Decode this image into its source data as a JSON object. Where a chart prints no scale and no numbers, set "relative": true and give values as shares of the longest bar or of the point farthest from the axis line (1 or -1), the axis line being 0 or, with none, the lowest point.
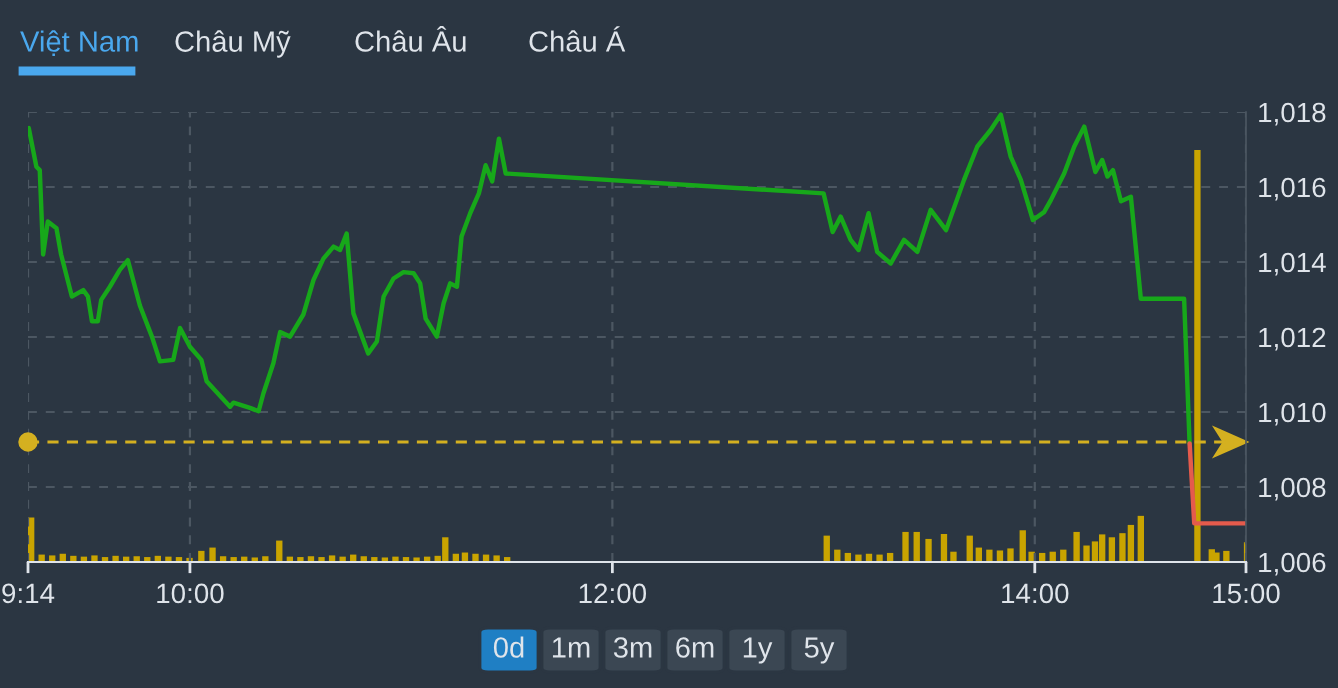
{
  "chart_data": [
    {
      "type": "line",
      "x": [
        9.237,
        9.273,
        9.289,
        9.305,
        9.327,
        9.368,
        9.39,
        9.441,
        9.495,
        9.517,
        9.536,
        9.564,
        9.58,
        9.621,
        9.668,
        9.706,
        9.763,
        9.82,
        9.858,
        9.921,
        9.953,
        10.0,
        10.054,
        10.079,
        10.19,
        10.206,
        10.284,
        10.325,
        10.348,
        10.395,
        10.427,
        10.474,
        10.537,
        10.585,
        10.632,
        10.68,
        10.711,
        10.742,
        10.774,
        10.844,
        10.885,
        10.917,
        10.964,
        11.011,
        11.059,
        11.09,
        11.116,
        11.169,
        11.201,
        11.232,
        11.264,
        11.286,
        11.327,
        11.368,
        11.4,
        11.431,
        11.463,
        11.495,
        13.0,
        13.043,
        13.081,
        13.128,
        13.166,
        13.213,
        13.254,
        13.318,
        13.381,
        13.444,
        13.507,
        13.58,
        13.665,
        13.728,
        13.791,
        13.839,
        13.886,
        13.934,
        13.991,
        14.044,
        14.076,
        14.139,
        14.187,
        14.234,
        14.287,
        14.319,
        14.344,
        14.37,
        14.408,
        14.455,
        14.502,
        14.707,
        14.733
      ],
      "series": [
        {
          "color": "#17a81a",
          "values": [
            1017.57,
            1016.54,
            1016.45,
            1014.2,
            1015.08,
            1014.9,
            1014.2,
            1013.08,
            1013.25,
            1013.08,
            1012.42,
            1012.42,
            1012.99,
            1013.34,
            1013.79,
            1014.05,
            1012.84,
            1012.01,
            1011.35,
            1011.39,
            1012.24,
            1011.74,
            1011.39,
            1010.82,
            1010.14,
            1010.25,
            1010.11,
            1010.02,
            1010.5,
            1011.3,
            1012.13,
            1012.01,
            1012.6,
            1013.52,
            1014.09,
            1014.41,
            1014.32,
            1014.76,
            1012.63,
            1011.56,
            1011.88,
            1013.08,
            1013.56,
            1013.73,
            1013.7,
            1013.43,
            1012.49,
            1012.01,
            1012.9,
            1013.43,
            1013.34,
            1014.68,
            1015.3,
            1015.83,
            1016.58,
            1016.15,
            1017.29,
            1016.36,
            1015.83,
            1014.8,
            1015.21,
            1014.59,
            1014.32,
            1015.3,
            1014.27,
            1013.96,
            1014.59,
            1014.27,
            1015.39,
            1014.85,
            1016.19,
            1017.08,
            1017.52,
            1017.93,
            1016.81,
            1016.19,
            1015.12,
            1015.33,
            1015.65,
            1016.36,
            1017.08,
            1017.61,
            1016.4,
            1016.72,
            1016.28,
            1016.45,
            1015.62,
            1015.74,
            1013.02,
            1013.02,
            1009.16
          ]
        },
        {
          "color": "#e55b4c",
          "x": [
            14.733,
            14.755,
            15.0
          ],
          "values": [
            1009.16,
            1007.03,
            1007.03
          ]
        }
      ],
      "xlim": [
        9.2333,
        15
      ],
      "xticks": [
        {
          "value": 9.2333,
          "label": "9:14"
        },
        {
          "value": 10,
          "label": "10:00"
        },
        {
          "value": 12,
          "label": "12:00"
        },
        {
          "value": 14,
          "label": "14:00"
        },
        {
          "value": 15,
          "label": "15:00"
        }
      ],
      "ylim": [
        1006,
        1018
      ],
      "yticks": [
        {
          "value": 1006,
          "label": "1,006"
        },
        {
          "value": 1008,
          "label": "1,008"
        },
        {
          "value": 1010,
          "label": "1,010"
        },
        {
          "value": 1012,
          "label": "1,012"
        },
        {
          "value": 1014,
          "label": "1,014"
        },
        {
          "value": 1016,
          "label": "1,016"
        },
        {
          "value": 1018,
          "label": "1,018"
        }
      ],
      "ref_lines": [
        {
          "axis": "y",
          "value": 1009.2,
          "color": "#d4b020",
          "line_style": "dashed"
        }
      ],
      "grid": true,
      "annotations": [
        "Việt Nam",
        "Châu Mỹ",
        "Châu Âu",
        "Châu Á",
        "0d",
        "1m",
        "3m",
        "6m",
        "1y",
        "5y"
      ]
    },
    {
      "type": "bar",
      "relative": true,
      "color": "#c9a400",
      "x": [
        9.2333,
        9.283,
        9.333,
        9.383,
        9.433,
        9.483,
        9.533,
        9.583,
        9.633,
        9.683,
        9.733,
        9.783,
        9.833,
        9.883,
        9.933,
        9.983,
        10.039,
        10.092,
        10.142,
        10.192,
        10.242,
        10.292,
        10.342,
        10.408,
        10.458,
        10.508,
        10.558,
        10.608,
        10.658,
        10.708,
        10.758,
        10.808,
        10.858,
        10.908,
        10.958,
        11.008,
        11.058,
        11.108,
        11.158,
        11.194,
        11.244,
        11.287,
        11.337,
        11.387,
        11.437,
        11.487,
        13.0,
        13.05,
        13.1,
        13.15,
        13.2,
        13.25,
        13.3,
        13.373,
        13.426,
        13.482,
        13.555,
        13.6,
        13.677,
        13.72,
        13.77,
        13.82,
        13.87,
        13.928,
        13.97,
        14.02,
        14.07,
        14.12,
        14.183,
        14.23,
        14.27,
        14.304,
        14.35,
        14.4,
        14.44,
        14.487,
        14.755,
        14.823,
        14.845,
        14.892,
        14.99
      ],
      "values": [
        0.108,
        0.018,
        0.016,
        0.02,
        0.015,
        0.013,
        0.016,
        0.012,
        0.015,
        0.013,
        0.014,
        0.012,
        0.015,
        0.013,
        0.012,
        0.01,
        0.027,
        0.035,
        0.014,
        0.012,
        0.013,
        0.011,
        0.014,
        0.052,
        0.013,
        0.012,
        0.014,
        0.012,
        0.016,
        0.013,
        0.018,
        0.014,
        0.012,
        0.011,
        0.013,
        0.012,
        0.011,
        0.013,
        0.015,
        0.06,
        0.02,
        0.023,
        0.02,
        0.018,
        0.016,
        0.012,
        0.064,
        0.03,
        0.022,
        0.018,
        0.02,
        0.018,
        0.022,
        0.073,
        0.073,
        0.056,
        0.068,
        0.025,
        0.064,
        0.035,
        0.03,
        0.028,
        0.033,
        0.077,
        0.025,
        0.022,
        0.025,
        0.03,
        0.073,
        0.04,
        0.05,
        0.067,
        0.06,
        0.07,
        0.09,
        0.112,
        1.0,
        0.031,
        0.023,
        0.027,
        0.048
      ],
      "xlim": [
        9.2333,
        15
      ],
      "tick_labels": false
    }
  ]
}
